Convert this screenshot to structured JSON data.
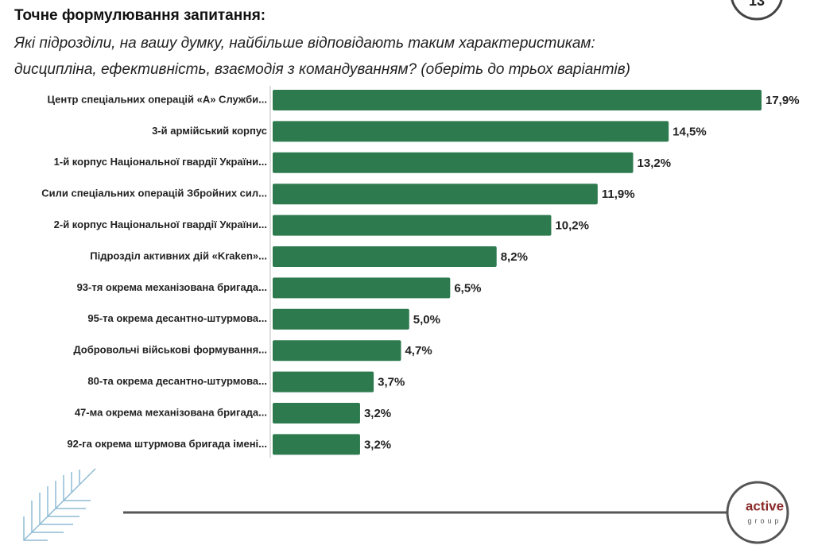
{
  "page_number": "13",
  "logo": {
    "name": "active",
    "sub": "group"
  },
  "chart_data": {
    "type": "bar",
    "orientation": "horizontal",
    "title": "Точне формулювання запитання:",
    "subtitle": [
      "Які підрозділи, на вашу думку, найбільше відповідають таким характеристикам:",
      "дисципліна, ефективність, взаємодія з командуванням? (оберіть до трьох варіантів)"
    ],
    "categories": [
      "Центр спеціальних операцій «А» Служби...",
      "3-й армійський корпус",
      "1-й корпус Національної гвардії України...",
      "Сили спеціальних операцій Збройних сил...",
      "2-й корпус Національної гвардії України...",
      "Підрозділ активних дій «Kraken»...",
      "93-тя окрема механізована бригада...",
      "95-та окрема десантно-штурмова...",
      "Добровольчі військові формування...",
      "80-та окрема десантно-штурмова...",
      "47-ма окрема механізована бригада...",
      "92-га окрема штурмова бригада імені..."
    ],
    "values": [
      17.9,
      14.5,
      13.2,
      11.9,
      10.2,
      8.2,
      6.5,
      5.0,
      4.7,
      3.7,
      3.2,
      3.2
    ],
    "value_labels": [
      "17,9%",
      "14,5%",
      "13,2%",
      "11,9%",
      "10,2%",
      "8,2%",
      "6,5%",
      "5,0%",
      "4,7%",
      "3,7%",
      "3,2%",
      "3,2%"
    ],
    "color": "#2e7a4f"
  }
}
